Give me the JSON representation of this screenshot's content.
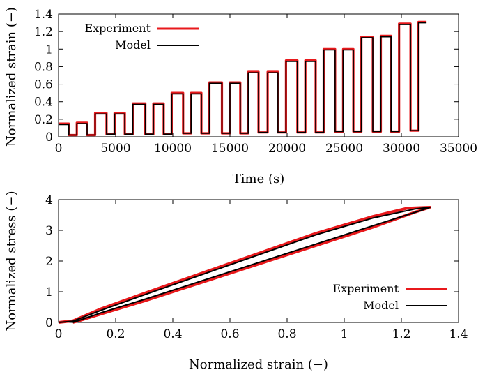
{
  "chart_data": [
    {
      "type": "line",
      "xlabel": "Time (s)",
      "ylabel": "Normalized strain (−)",
      "xlim": [
        0,
        35000
      ],
      "ylim": [
        0,
        1.4
      ],
      "xticks": [
        "0",
        "5000",
        "10000",
        "15000",
        "20000",
        "25000",
        "30000",
        "35000"
      ],
      "yticks": [
        "0",
        "0.2",
        "0.4",
        "0.6",
        "0.8",
        "1",
        "1.2",
        "1.4"
      ],
      "legend": {
        "placement": "top-left",
        "entries": [
          "Experiment",
          "Model"
        ]
      },
      "colors": {
        "Experiment": "#e8191c",
        "Model": "#000000"
      },
      "grid": false,
      "series": [
        {
          "name": "Experiment",
          "x": [
            0,
            900,
            900,
            1600,
            1600,
            2500,
            2500,
            3200,
            3200,
            4200,
            4200,
            4900,
            4900,
            5800,
            5800,
            6500,
            6500,
            7600,
            7600,
            8300,
            8300,
            9200,
            9200,
            9900,
            9900,
            10900,
            10900,
            11600,
            11600,
            12500,
            12500,
            13200,
            13200,
            14300,
            14300,
            15000,
            15000,
            15900,
            15900,
            16600,
            16600,
            17500,
            17500,
            18300,
            18300,
            19200,
            19200,
            19900,
            19900,
            20900,
            20900,
            21600,
            21600,
            22500,
            22500,
            23200,
            23200,
            24200,
            24200,
            24900,
            24900,
            25800,
            25800,
            26500,
            26500,
            27500,
            27500,
            28200,
            28200,
            29100,
            29100,
            29800,
            29800,
            30800,
            30800,
            31500,
            31500,
            32200
          ],
          "y": [
            0.15,
            0.15,
            0.02,
            0.02,
            0.16,
            0.16,
            0.02,
            0.02,
            0.27,
            0.27,
            0.03,
            0.03,
            0.27,
            0.27,
            0.03,
            0.03,
            0.38,
            0.38,
            0.03,
            0.03,
            0.38,
            0.38,
            0.03,
            0.03,
            0.5,
            0.5,
            0.04,
            0.04,
            0.5,
            0.5,
            0.04,
            0.04,
            0.62,
            0.62,
            0.04,
            0.04,
            0.62,
            0.62,
            0.04,
            0.04,
            0.74,
            0.74,
            0.05,
            0.05,
            0.74,
            0.74,
            0.05,
            0.05,
            0.87,
            0.87,
            0.05,
            0.05,
            0.87,
            0.87,
            0.05,
            0.05,
            1.0,
            1.0,
            0.06,
            0.06,
            1.0,
            1.0,
            0.06,
            0.06,
            1.14,
            1.14,
            0.06,
            0.06,
            1.15,
            1.15,
            0.06,
            0.06,
            1.29,
            1.29,
            0.07,
            0.07,
            1.31,
            1.31
          ]
        },
        {
          "name": "Model",
          "x": [
            0,
            900,
            900,
            1600,
            1600,
            2500,
            2500,
            3200,
            3200,
            4200,
            4200,
            4900,
            4900,
            5800,
            5800,
            6500,
            6500,
            7600,
            7600,
            8300,
            8300,
            9200,
            9200,
            9900,
            9900,
            10900,
            10900,
            11600,
            11600,
            12500,
            12500,
            13200,
            13200,
            14300,
            14300,
            15000,
            15000,
            15900,
            15900,
            16600,
            16600,
            17500,
            17500,
            18300,
            18300,
            19200,
            19200,
            19900,
            19900,
            20900,
            20900,
            21600,
            21600,
            22500,
            22500,
            23200,
            23200,
            24200,
            24200,
            24900,
            24900,
            25800,
            25800,
            26500,
            26500,
            27500,
            27500,
            28200,
            28200,
            29100,
            29100,
            29800,
            29800,
            30800,
            30800,
            31500,
            31500,
            32200
          ],
          "y": [
            0.14,
            0.14,
            0.02,
            0.02,
            0.15,
            0.15,
            0.02,
            0.02,
            0.26,
            0.26,
            0.03,
            0.03,
            0.26,
            0.26,
            0.03,
            0.03,
            0.37,
            0.37,
            0.03,
            0.03,
            0.37,
            0.37,
            0.03,
            0.03,
            0.49,
            0.49,
            0.04,
            0.04,
            0.49,
            0.49,
            0.04,
            0.04,
            0.61,
            0.61,
            0.04,
            0.04,
            0.61,
            0.61,
            0.04,
            0.04,
            0.73,
            0.73,
            0.05,
            0.05,
            0.73,
            0.73,
            0.05,
            0.05,
            0.86,
            0.86,
            0.05,
            0.05,
            0.86,
            0.86,
            0.05,
            0.05,
            0.99,
            0.99,
            0.06,
            0.06,
            0.99,
            0.99,
            0.06,
            0.06,
            1.13,
            1.13,
            0.06,
            0.06,
            1.14,
            1.14,
            0.06,
            0.06,
            1.28,
            1.28,
            0.07,
            0.07,
            1.3,
            1.3
          ]
        }
      ]
    },
    {
      "type": "line",
      "xlabel": "Normalized strain (−)",
      "ylabel": "Normalized stress (−)",
      "xlim": [
        0,
        1.4
      ],
      "ylim": [
        0,
        4
      ],
      "xticks": [
        "0",
        "0.2",
        "0.4",
        "0.6",
        "0.8",
        "1",
        "1.2",
        "1.4"
      ],
      "yticks": [
        "0",
        "1",
        "2",
        "3",
        "4"
      ],
      "legend": {
        "placement": "bottom-right",
        "entries": [
          "Experiment",
          "Model"
        ]
      },
      "colors": {
        "Experiment": "#e8191c",
        "Model": "#000000"
      },
      "grid": false,
      "series": [
        {
          "name": "Experiment",
          "x": [
            0,
            0.05,
            0.15,
            0.3,
            0.5,
            0.7,
            0.9,
            1.1,
            1.22,
            1.3,
            1.25,
            1.1,
            0.9,
            0.7,
            0.5,
            0.3,
            0.15,
            0.07,
            0.05
          ],
          "y": [
            0,
            0.05,
            0.45,
            0.95,
            1.6,
            2.25,
            2.9,
            3.45,
            3.72,
            3.75,
            3.6,
            3.1,
            2.5,
            1.9,
            1.3,
            0.7,
            0.28,
            0.05,
            0
          ]
        },
        {
          "name": "Model",
          "x": [
            0,
            0.05,
            0.15,
            0.3,
            0.5,
            0.7,
            0.9,
            1.1,
            1.25,
            1.3,
            1.26,
            1.1,
            0.9,
            0.7,
            0.5,
            0.3,
            0.15,
            0.07,
            0.05
          ],
          "y": [
            0,
            0.04,
            0.4,
            0.9,
            1.55,
            2.2,
            2.85,
            3.4,
            3.7,
            3.75,
            3.62,
            3.15,
            2.55,
            1.95,
            1.35,
            0.75,
            0.32,
            0.06,
            0
          ]
        }
      ]
    }
  ]
}
